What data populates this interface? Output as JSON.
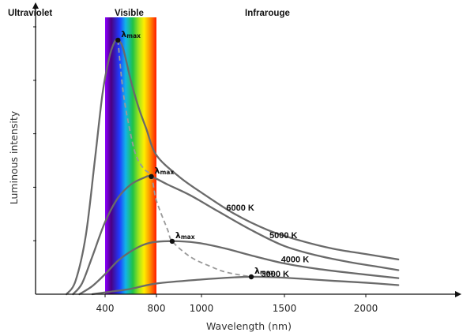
{
  "chart_data": {
    "type": "line",
    "title": "",
    "xlabel": "Wavelength (nm)",
    "ylabel": "Luminous intensity",
    "xlim": [
      0,
      2200
    ],
    "ylim": [
      0,
      100
    ],
    "x_ticks": [
      {
        "value": 400,
        "label": "400"
      },
      {
        "value": 800,
        "label": "800"
      },
      {
        "value": 1000,
        "label": "1000"
      },
      {
        "value": 1500,
        "label": "1500"
      },
      {
        "value": 2000,
        "label": "2000"
      }
    ],
    "y_ticks": [
      20,
      40,
      60,
      80,
      100
    ],
    "regions": [
      {
        "name": "ultraviolet",
        "label": "Ultraviolet"
      },
      {
        "name": "visible",
        "label": "Visible"
      },
      {
        "name": "infrared",
        "label": "Infrarouge"
      }
    ],
    "visible_band": {
      "x_start": 400,
      "x_end": 800
    },
    "series": [
      {
        "name": "6000 K",
        "points": [
          [
            100,
            0
          ],
          [
            170,
            5
          ],
          [
            250,
            22
          ],
          [
            320,
            50
          ],
          [
            380,
            75
          ],
          [
            430,
            88
          ],
          [
            470,
            94
          ],
          [
            500,
            95
          ],
          [
            540,
            92
          ],
          [
            600,
            80
          ],
          [
            660,
            70
          ],
          [
            720,
            62
          ],
          [
            800,
            52
          ],
          [
            900,
            44
          ],
          [
            1000,
            38
          ],
          [
            1200,
            30
          ],
          [
            1400,
            24
          ],
          [
            1600,
            20
          ],
          [
            1800,
            17
          ],
          [
            2000,
            15
          ],
          [
            2200,
            13
          ]
        ]
      },
      {
        "name": "5000 K",
        "points": [
          [
            150,
            0
          ],
          [
            220,
            4
          ],
          [
            300,
            14
          ],
          [
            400,
            27
          ],
          [
            500,
            36
          ],
          [
            600,
            41
          ],
          [
            700,
            43.5
          ],
          [
            760,
            44
          ],
          [
            850,
            41
          ],
          [
            950,
            37
          ],
          [
            1100,
            31
          ],
          [
            1300,
            24
          ],
          [
            1500,
            18
          ],
          [
            1700,
            14.5
          ],
          [
            1900,
            12
          ],
          [
            2050,
            10.5
          ],
          [
            2200,
            9
          ]
        ]
      },
      {
        "name": "4000 K",
        "points": [
          [
            200,
            0
          ],
          [
            300,
            3
          ],
          [
            400,
            7.5
          ],
          [
            500,
            12.5
          ],
          [
            600,
            16
          ],
          [
            700,
            18.5
          ],
          [
            800,
            19.6
          ],
          [
            900,
            19.8
          ],
          [
            1000,
            19
          ],
          [
            1150,
            17
          ],
          [
            1300,
            14.5
          ],
          [
            1500,
            11.5
          ],
          [
            1700,
            9.5
          ],
          [
            1900,
            8
          ],
          [
            2200,
            6
          ]
        ]
      },
      {
        "name": "3000 K",
        "points": [
          [
            300,
            0
          ],
          [
            450,
            1
          ],
          [
            600,
            2
          ],
          [
            800,
            4
          ],
          [
            1000,
            5.5
          ],
          [
            1200,
            6.3
          ],
          [
            1300,
            6.5
          ],
          [
            1450,
            6.3
          ],
          [
            1600,
            5.8
          ],
          [
            1800,
            5
          ],
          [
            2000,
            4.3
          ],
          [
            2200,
            3.4
          ]
        ]
      }
    ],
    "peaks": [
      {
        "series": "6000 K",
        "x": 500,
        "y": 95
      },
      {
        "series": "5000 K",
        "x": 760,
        "y": 44
      },
      {
        "series": "4000 K",
        "x": 870,
        "y": 19.8
      },
      {
        "series": "3000 K",
        "x": 1300,
        "y": 6.5
      }
    ],
    "peak_label": {
      "symbol": "λ",
      "subscript": "max"
    },
    "peak_curve": {
      "style": "dashed",
      "points": [
        [
          500,
          95
        ],
        [
          540,
          76
        ],
        [
          590,
          62
        ],
        [
          640,
          52
        ],
        [
          700,
          47
        ],
        [
          760,
          44
        ],
        [
          800,
          35
        ],
        [
          850,
          24
        ],
        [
          870,
          19.8
        ],
        [
          950,
          14
        ],
        [
          1050,
          10.5
        ],
        [
          1150,
          8.2
        ],
        [
          1300,
          6.5
        ]
      ]
    },
    "grid": false,
    "legend": "inline-curve-labels"
  }
}
